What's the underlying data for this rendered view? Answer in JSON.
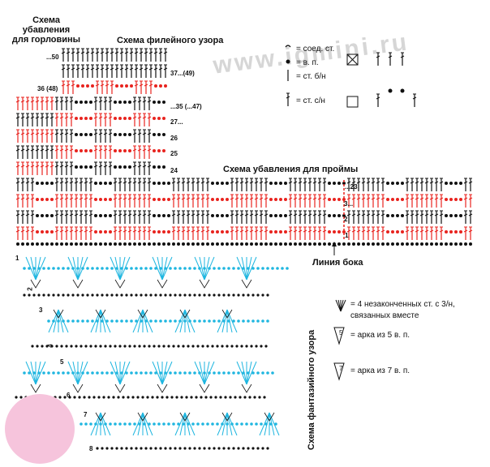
{
  "titles": {
    "neck": "Схема\nубавления\nдля горловины",
    "filet": "Схема филейного узора",
    "armhole": "Схема убавления для проймы",
    "side_line": "Линия бока",
    "fancy": "Схема фантазийного узора"
  },
  "watermark": "www.igmini.ru",
  "row_labels": {
    "r50": "...50",
    "r49": "37...(49)",
    "r48": "36 (48)",
    "r47": "...35 (...47)",
    "r27": "27...",
    "r26": "26",
    "r25": "25",
    "r24": "24",
    "r23": "...23",
    "r3": "3...",
    "r2": "2",
    "r1": "1",
    "f1": "1",
    "f2": "2",
    "f3": "3",
    "f4": "4",
    "f5": "5",
    "f6": "6",
    "f7": "7",
    "f8": "8"
  },
  "legend": {
    "slip": "= соед. ст.",
    "ch": "= в. п.",
    "sc": "= ст. б/н",
    "dc": "= ст. с/н",
    "cl4": "= 4 незаконченных ст. с 3/н,\nсвязанных вместе",
    "arc5": "= арка из 5 в. п.",
    "arc7": "= арка из 7 в. п.",
    "arc5_num": "5",
    "arc7_num": "7"
  },
  "colors": {
    "black": "#111111",
    "red": "#e8231e",
    "cyan": "#1fb6e0",
    "avatar": "#f6c4dc"
  }
}
